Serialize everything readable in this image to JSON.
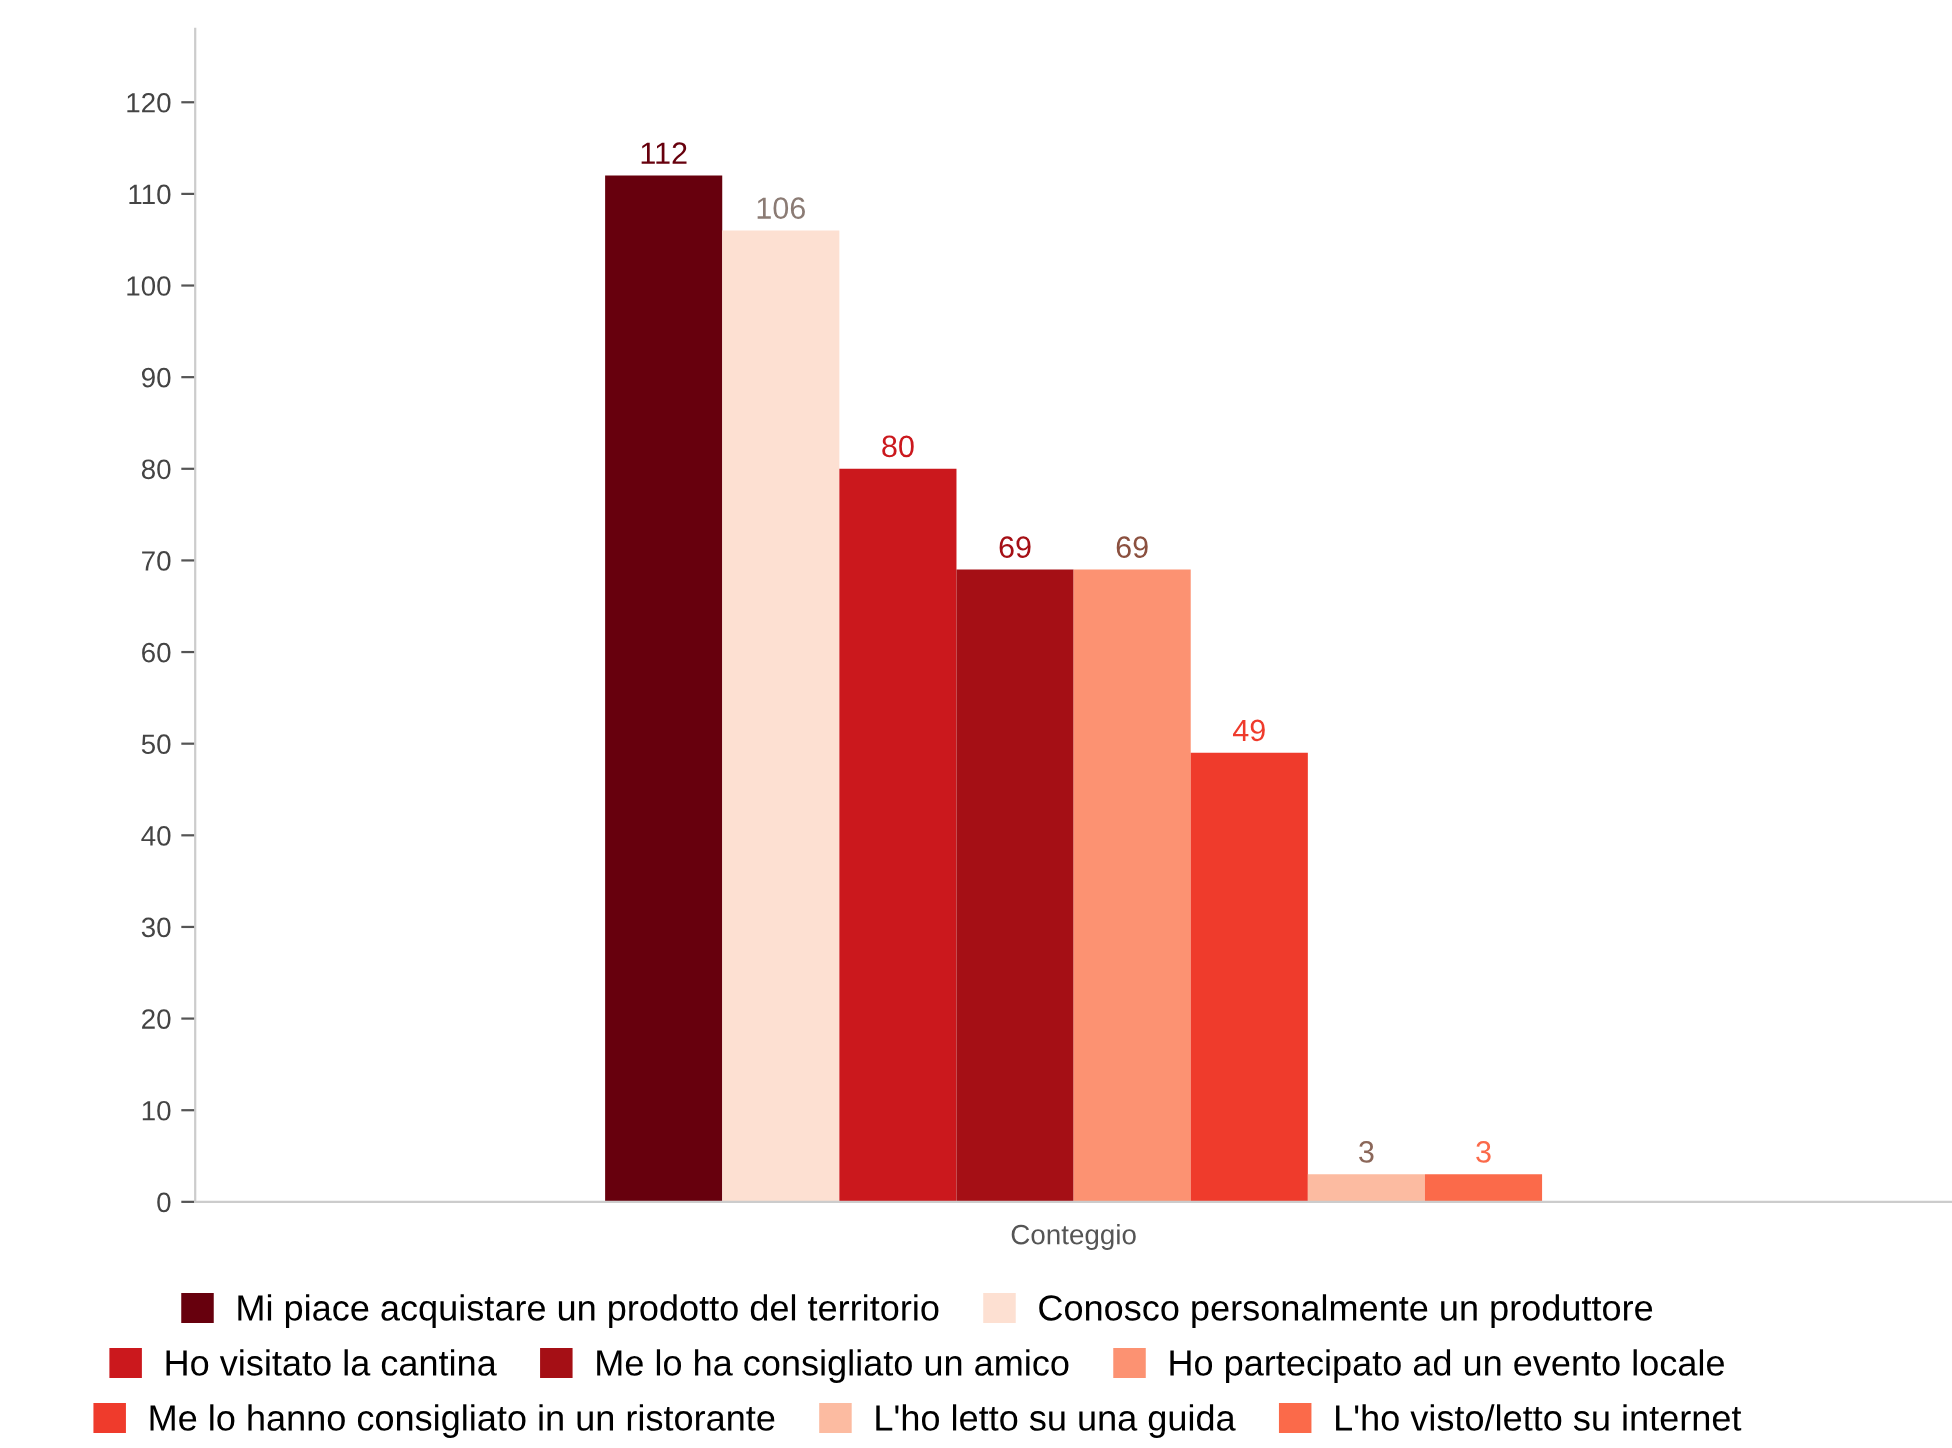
{
  "chart_data": {
    "type": "bar",
    "categories": [
      "Conteggio"
    ],
    "series": [
      {
        "name": "Mi piace acquistare un prodotto del territorio",
        "color": "#67000d",
        "values": [
          112
        ]
      },
      {
        "name": "Conosco personalmente un produttore",
        "color": "#fde0d2",
        "values": [
          106
        ]
      },
      {
        "name": "Ho visitato la cantina",
        "color": "#cb181d",
        "values": [
          80
        ]
      },
      {
        "name": "Me lo ha consigliato un amico",
        "color": "#a50f15",
        "values": [
          69
        ]
      },
      {
        "name": "Ho partecipato ad un evento locale",
        "color": "#fc9272",
        "values": [
          69
        ]
      },
      {
        "name": "Me lo hanno consigliato in un ristorante",
        "color": "#ef3b2c",
        "values": [
          49
        ]
      },
      {
        "name": "L'ho letto su una guida",
        "color": "#fcbba1",
        "values": [
          3
        ]
      },
      {
        "name": "L'ho visto/letto su internet",
        "color": "#fb6a4a",
        "values": [
          3
        ]
      }
    ],
    "ylim": [
      0,
      128
    ],
    "yticks": [
      0,
      10,
      20,
      30,
      40,
      50,
      60,
      70,
      80,
      90,
      100,
      110,
      120
    ],
    "data_labels": true,
    "legend": "bottom",
    "grid": false
  }
}
